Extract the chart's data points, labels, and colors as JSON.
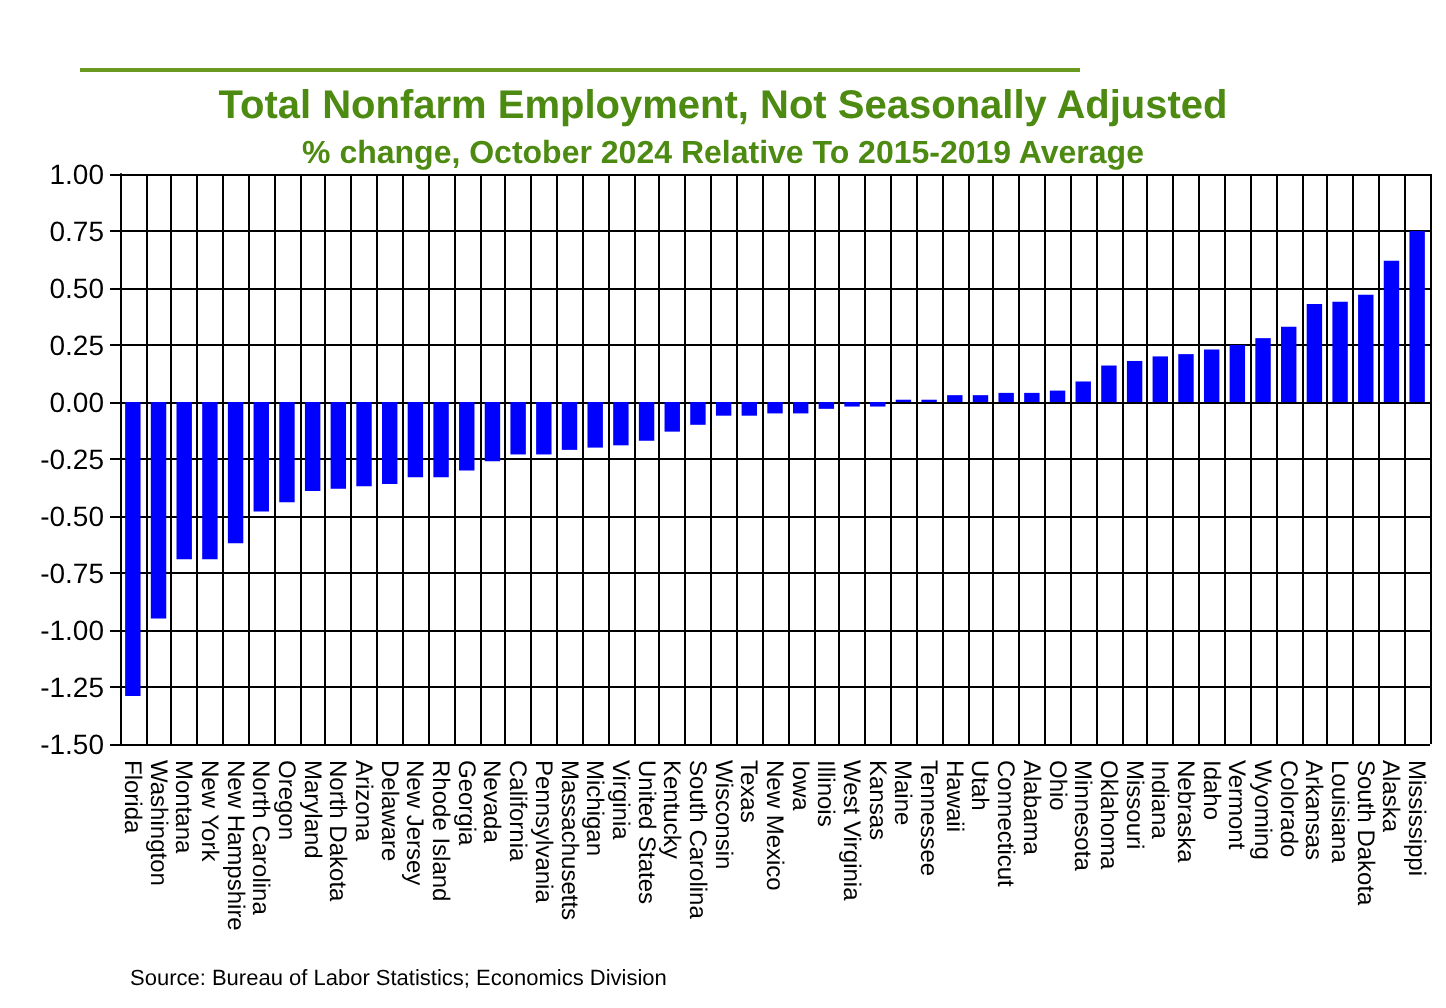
{
  "chart_data": {
    "type": "bar",
    "title": "Total Nonfarm Employment, Not Seasonally Adjusted",
    "subtitle": "% change, October 2024 Relative To 2015-2019 Average",
    "categories": [
      "Florida",
      "Washington",
      "Montana",
      "New York",
      "New Hampshire",
      "North Carolina",
      "Oregon",
      "Maryland",
      "North Dakota",
      "Arizona",
      "Delaware",
      "New Jersey",
      "Rhode Island",
      "Georgia",
      "Nevada",
      "California",
      "Pennsylvania",
      "Massachusetts",
      "Michigan",
      "Virginia",
      "United States",
      "Kentucky",
      "South Carolina",
      "Wisconsin",
      "Texas",
      "New Mexico",
      "Iowa",
      "Illinois",
      "West Virginia",
      "Kansas",
      "Maine",
      "Tennessee",
      "Hawaii",
      "Utah",
      "Connecticut",
      "Alabama",
      "Ohio",
      "Minnesota",
      "Oklahoma",
      "Missouri",
      "Indiana",
      "Nebraska",
      "Idaho",
      "Vermont",
      "Wyoming",
      "Colorado",
      "Arkansas",
      "Louisiana",
      "South Dakota",
      "Alaska",
      "Mississippi"
    ],
    "values": [
      -1.29,
      -0.95,
      -0.69,
      -0.69,
      -0.62,
      -0.48,
      -0.44,
      -0.39,
      -0.38,
      -0.37,
      -0.36,
      -0.33,
      -0.33,
      -0.3,
      -0.26,
      -0.23,
      -0.23,
      -0.21,
      -0.2,
      -0.19,
      -0.17,
      -0.13,
      -0.1,
      -0.06,
      -0.06,
      -0.05,
      -0.05,
      -0.03,
      -0.02,
      -0.02,
      0.01,
      0.01,
      0.03,
      0.03,
      0.04,
      0.04,
      0.05,
      0.09,
      0.16,
      0.18,
      0.2,
      0.21,
      0.23,
      0.25,
      0.28,
      0.33,
      0.43,
      0.44,
      0.47,
      0.62,
      0.75
    ],
    "color": "#0000ff",
    "ylim": [
      -1.5,
      1
    ],
    "yticks": [
      {
        "value": -1.5,
        "label": "-1.50"
      },
      {
        "value": -1.25,
        "label": "-1.25"
      },
      {
        "value": -1,
        "label": "-1.00"
      },
      {
        "value": -0.75,
        "label": "-0.75"
      },
      {
        "value": -0.5,
        "label": "-0.50"
      },
      {
        "value": -0.25,
        "label": "-0.25"
      },
      {
        "value": 0,
        "label": "0.00"
      },
      {
        "value": 0.25,
        "label": "0.25"
      },
      {
        "value": 0.5,
        "label": "0.50"
      },
      {
        "value": 0.75,
        "label": "0.75"
      },
      {
        "value": 1,
        "label": "1.00"
      }
    ],
    "grid": true,
    "annotations": [
      "Source: Bureau of Labor Statistics; Economics Division"
    ]
  }
}
